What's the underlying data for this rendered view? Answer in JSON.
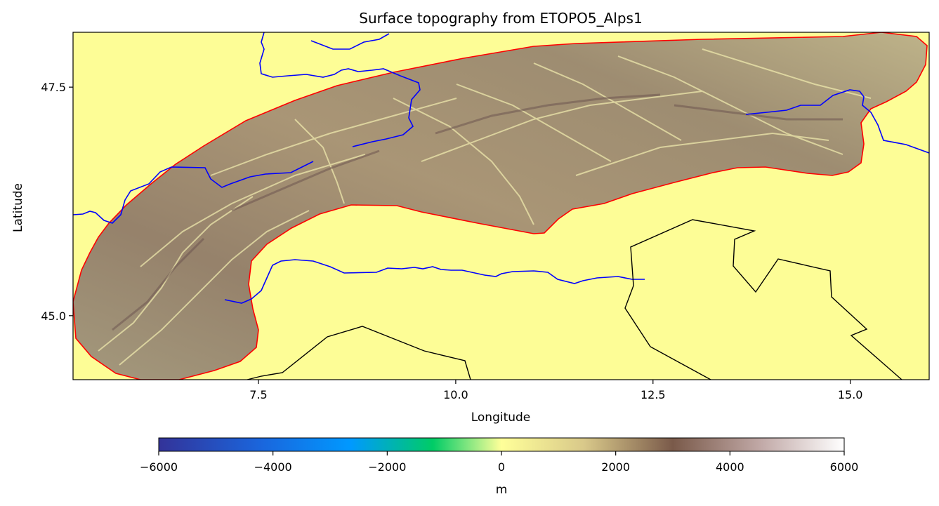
{
  "title": "Surface topography from ETOPO5_Alps1",
  "map": {
    "xlabel": "Longitude",
    "ylabel": "Latitude",
    "xlim": [
      5.15,
      16.0
    ],
    "ylim": [
      44.3,
      48.1
    ],
    "xticks": [
      {
        "value": 7.5,
        "label": "7.5"
      },
      {
        "value": 10.0,
        "label": "10.0"
      },
      {
        "value": 12.5,
        "label": "12.5"
      },
      {
        "value": 15.0,
        "label": "15.0"
      }
    ],
    "yticks": [
      {
        "value": 45.0,
        "label": "45.0"
      },
      {
        "value": 47.5,
        "label": "47.5"
      }
    ],
    "background_color": "#fdfd96",
    "domain_outline_color": "#ff0000",
    "river_color": "#0000ff",
    "border_color": "#000000"
  },
  "colorbar": {
    "label": "m",
    "min": -6000,
    "max": 6000,
    "ticks": [
      {
        "value": -6000,
        "label": "−6000"
      },
      {
        "value": -4000,
        "label": "−4000"
      },
      {
        "value": -2000,
        "label": "−2000"
      },
      {
        "value": 0,
        "label": "0"
      },
      {
        "value": 2000,
        "label": "2000"
      },
      {
        "value": 4000,
        "label": "4000"
      },
      {
        "value": 6000,
        "label": "6000"
      }
    ],
    "colormap": [
      "#333399",
      "#0099ff",
      "#00cc66",
      "#ffff99",
      "#806040",
      "#805850",
      "#ffffff"
    ]
  }
}
